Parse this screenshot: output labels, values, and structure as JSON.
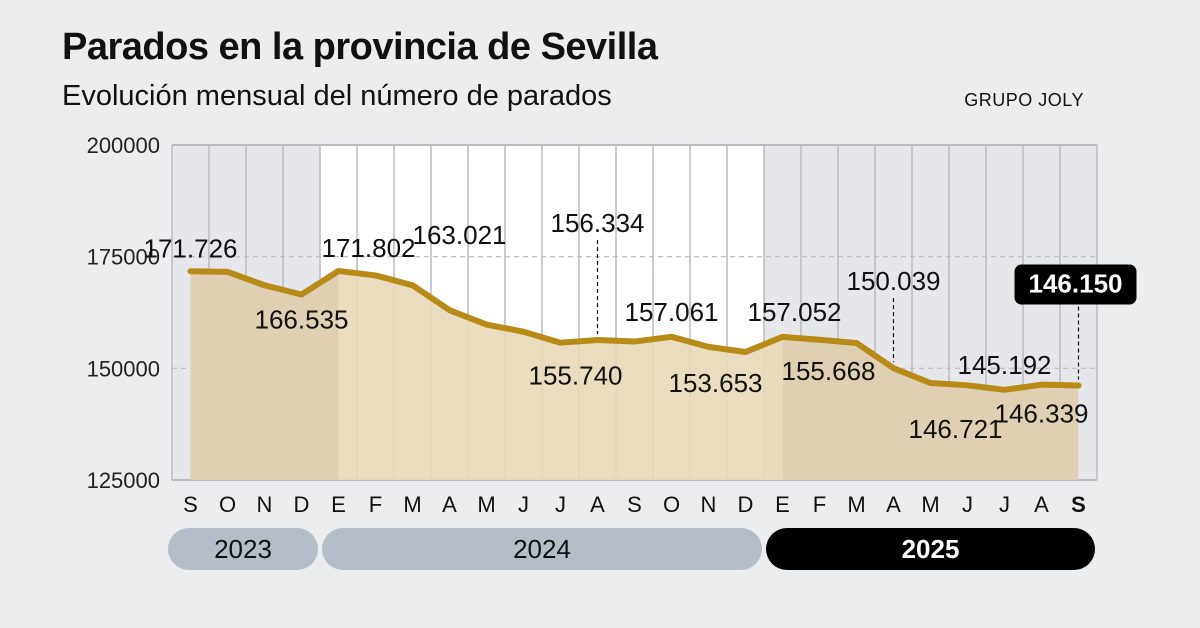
{
  "header": {
    "title": "Parados en la provincia de Sevilla",
    "subtitle": "Evolución mensual del número de parados",
    "source": "GRUPO JOLY"
  },
  "chart_data": {
    "type": "area",
    "title": "Parados en la provincia de Sevilla",
    "subtitle": "Evolución mensual del número de parados",
    "xlabel": "",
    "ylabel": "",
    "ylim": [
      125000,
      200000
    ],
    "yticks": [
      200000,
      175000,
      150000,
      125000
    ],
    "ytick_labels": [
      "200000",
      "175000",
      "150000",
      "125000"
    ],
    "categories": [
      "S",
      "O",
      "N",
      "D",
      "E",
      "F",
      "M",
      "A",
      "M",
      "J",
      "J",
      "A",
      "S",
      "O",
      "N",
      "D",
      "E",
      "F",
      "M",
      "A",
      "M",
      "J",
      "J",
      "A",
      "S"
    ],
    "years": [
      {
        "label": "2023",
        "start": 0,
        "end": 3
      },
      {
        "label": "2024",
        "start": 4,
        "end": 15
      },
      {
        "label": "2025",
        "start": 16,
        "end": 24
      }
    ],
    "series": [
      {
        "name": "Parados",
        "values": [
          171726,
          171600,
          168600,
          166535,
          171802,
          170800,
          168600,
          163021,
          159800,
          158200,
          155740,
          156334,
          156000,
          157061,
          154800,
          153653,
          157052,
          156400,
          155668,
          150039,
          146721,
          146200,
          145192,
          146339,
          146150
        ]
      }
    ],
    "data_labels": [
      {
        "index": 0,
        "text": "171.726"
      },
      {
        "index": 3,
        "text": "166.535"
      },
      {
        "index": 4,
        "text": "171.802"
      },
      {
        "index": 7,
        "text": "163.021"
      },
      {
        "index": 10,
        "text": "155.740"
      },
      {
        "index": 11,
        "text": "156.334"
      },
      {
        "index": 13,
        "text": "157.061"
      },
      {
        "index": 15,
        "text": "153.653"
      },
      {
        "index": 16,
        "text": "157.052"
      },
      {
        "index": 18,
        "text": "155.668"
      },
      {
        "index": 19,
        "text": "150.039"
      },
      {
        "index": 20,
        "text": "146.721"
      },
      {
        "index": 22,
        "text": "145.192"
      },
      {
        "index": 23,
        "text": "146.339"
      },
      {
        "index": 24,
        "text": "146.150",
        "highlight": true
      }
    ],
    "colors": {
      "line": "#b88a18",
      "area": "#e8d9b8",
      "area_shade": "#dccdb0",
      "grid": "#b8bcc2",
      "year_2023": "#b5bdc8",
      "year_2024": "#b5bdc8",
      "year_2025": "#000000",
      "highlight_bg": "#000000"
    }
  }
}
